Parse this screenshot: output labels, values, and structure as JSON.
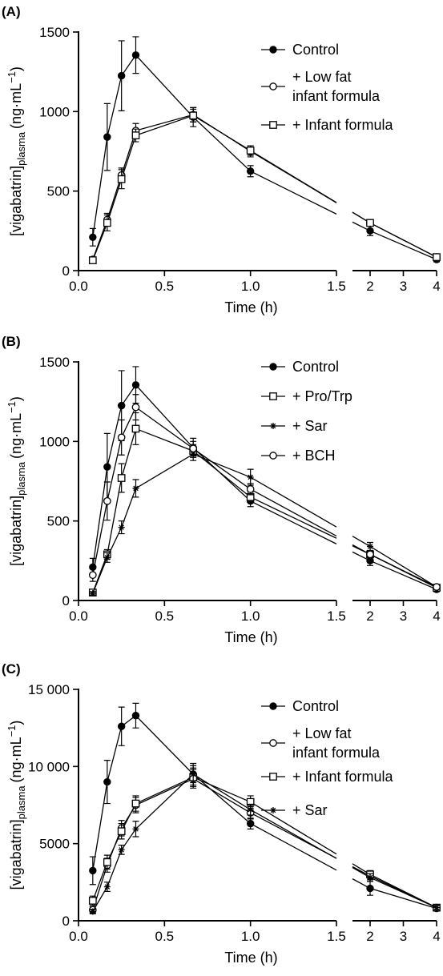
{
  "chart_data": [
    {
      "panel_label": "(A)",
      "type": "line",
      "xlabel": "Time (h)",
      "ylabel_main": "[vigabatrin]",
      "ylabel_sub": "plasma",
      "ylabel_unit": "(ng·mL",
      "ylabel_sup": "−1",
      "ylabel_close": ")",
      "ylim": [
        0,
        1500
      ],
      "y_ticks": [
        0,
        500,
        1000,
        1500
      ],
      "y_tick_labels": [
        "0",
        "500",
        "1000",
        "1500"
      ],
      "x_segments": [
        {
          "range": [
            0,
            1.5
          ],
          "ticks": [
            0,
            0.5,
            1,
            1.5
          ],
          "tick_labels": [
            "0.0",
            "0.5",
            "1.0",
            "1.5"
          ]
        },
        {
          "range": [
            1.5,
            4
          ],
          "ticks": [
            2,
            3,
            4
          ],
          "tick_labels": [
            "2",
            "3",
            "4"
          ]
        }
      ],
      "legend_position": "top-right",
      "series": [
        {
          "name": "Control",
          "marker": "filled-circle",
          "x": [
            0.083,
            0.167,
            0.25,
            0.333,
            0.667,
            1,
            2,
            4
          ],
          "y": [
            210,
            840,
            1225,
            1355,
            965,
            625,
            250,
            70
          ],
          "err": [
            55,
            210,
            220,
            115,
            60,
            35,
            30,
            15
          ]
        },
        {
          "name": "+ Low fat\ninfant formula",
          "marker": "open-circle",
          "x": [
            0.083,
            0.167,
            0.25,
            0.333,
            0.667,
            1,
            2,
            4
          ],
          "y": [
            70,
            320,
            600,
            880,
            980,
            750,
            300,
            85
          ],
          "err": [
            15,
            40,
            45,
            45,
            45,
            35,
            20,
            12
          ]
        },
        {
          "name": "+ Infant formula",
          "marker": "open-square",
          "x": [
            0.083,
            0.167,
            0.25,
            0.333,
            0.667,
            1,
            2,
            4
          ],
          "y": [
            65,
            300,
            575,
            850,
            975,
            755,
            300,
            85
          ],
          "err": [
            15,
            50,
            60,
            40,
            40,
            30,
            20,
            12
          ]
        }
      ]
    },
    {
      "panel_label": "(B)",
      "type": "line",
      "xlabel": "Time (h)",
      "ylabel_main": "[vigabatrin]",
      "ylabel_sub": "plasma",
      "ylabel_unit": "(ng·mL",
      "ylabel_sup": "−1",
      "ylabel_close": ")",
      "ylim": [
        0,
        1500
      ],
      "y_ticks": [
        0,
        500,
        1000,
        1500
      ],
      "y_tick_labels": [
        "0",
        "500",
        "1000",
        "1500"
      ],
      "x_segments": [
        {
          "range": [
            0,
            1.5
          ],
          "ticks": [
            0,
            0.5,
            1,
            1.5
          ],
          "tick_labels": [
            "0.0",
            "0.5",
            "1.0",
            "1.5"
          ]
        },
        {
          "range": [
            1.5,
            4
          ],
          "ticks": [
            2,
            3,
            4
          ],
          "tick_labels": [
            "2",
            "3",
            "4"
          ]
        }
      ],
      "legend_position": "top-right",
      "series": [
        {
          "name": "Control",
          "marker": "filled-circle",
          "x": [
            0.083,
            0.167,
            0.25,
            0.333,
            0.667,
            1,
            2,
            4
          ],
          "y": [
            210,
            840,
            1225,
            1355,
            960,
            625,
            250,
            70
          ],
          "err": [
            55,
            210,
            220,
            115,
            60,
            35,
            30,
            15
          ]
        },
        {
          "name": "+ Pro/Trp",
          "marker": "open-square",
          "x": [
            0.083,
            0.167,
            0.25,
            0.333,
            0.667,
            1,
            2,
            4
          ],
          "y": [
            50,
            290,
            770,
            1080,
            940,
            650,
            290,
            80
          ],
          "err": [
            12,
            30,
            90,
            100,
            40,
            30,
            20,
            12
          ]
        },
        {
          "name": "+ Sar",
          "marker": "star",
          "x": [
            0.083,
            0.167,
            0.25,
            0.333,
            0.667,
            1,
            2,
            4
          ],
          "y": [
            45,
            270,
            460,
            705,
            920,
            775,
            340,
            85
          ],
          "err": [
            10,
            30,
            40,
            55,
            40,
            50,
            25,
            12
          ]
        },
        {
          "name": "+ BCH",
          "marker": "open-circle",
          "x": [
            0.083,
            0.167,
            0.25,
            0.333,
            0.667,
            1,
            2,
            4
          ],
          "y": [
            160,
            625,
            1025,
            1215,
            955,
            700,
            290,
            85
          ],
          "err": [
            40,
            120,
            110,
            80,
            45,
            35,
            20,
            12
          ]
        }
      ]
    },
    {
      "panel_label": "(C)",
      "type": "line",
      "xlabel": "Time (h)",
      "ylabel_main": "[vigabatrin]",
      "ylabel_sub": "plasma",
      "ylabel_unit": "(ng·mL",
      "ylabel_sup": "−1",
      "ylabel_close": ")",
      "ylim": [
        0,
        15000
      ],
      "y_ticks": [
        0,
        5000,
        10000,
        15000
      ],
      "y_tick_labels": [
        "0",
        "5000",
        "10 000",
        "15 000"
      ],
      "x_segments": [
        {
          "range": [
            0,
            1.5
          ],
          "ticks": [
            0,
            0.5,
            1,
            1.5
          ],
          "tick_labels": [
            "0.0",
            "0.5",
            "1.0",
            "1.5"
          ]
        },
        {
          "range": [
            1.5,
            4
          ],
          "ticks": [
            2,
            3,
            4
          ],
          "tick_labels": [
            "2",
            "3",
            "4"
          ]
        }
      ],
      "legend_position": "top-right",
      "series": [
        {
          "name": "Control",
          "marker": "filled-circle",
          "x": [
            0.083,
            0.167,
            0.25,
            0.333,
            0.667,
            1,
            2,
            4
          ],
          "y": [
            3250,
            9000,
            12600,
            13300,
            9500,
            6300,
            2100,
            800
          ],
          "err": [
            900,
            1400,
            1250,
            800,
            700,
            350,
            450,
            150
          ]
        },
        {
          "name": "+ Low fat\ninfant formula",
          "marker": "open-circle",
          "x": [
            0.083,
            0.167,
            0.25,
            0.333,
            0.667,
            1,
            2,
            4
          ],
          "y": [
            700,
            3600,
            6000,
            7500,
            9200,
            7000,
            2900,
            850
          ],
          "err": [
            200,
            450,
            500,
            500,
            600,
            400,
            250,
            150
          ]
        },
        {
          "name": "+ Infant formula",
          "marker": "open-square",
          "x": [
            0.083,
            0.167,
            0.25,
            0.333,
            0.667,
            1,
            2,
            4
          ],
          "y": [
            1300,
            3800,
            5800,
            7600,
            9300,
            7700,
            3000,
            850
          ],
          "err": [
            300,
            450,
            500,
            500,
            600,
            400,
            250,
            150
          ]
        },
        {
          "name": "+ Sar",
          "marker": "star",
          "x": [
            0.083,
            0.167,
            0.25,
            0.333,
            0.667,
            1,
            2,
            4
          ],
          "y": [
            600,
            2200,
            4600,
            5950,
            9500,
            7200,
            2800,
            850
          ],
          "err": [
            150,
            300,
            300,
            500,
            550,
            350,
            250,
            150
          ]
        }
      ]
    }
  ]
}
